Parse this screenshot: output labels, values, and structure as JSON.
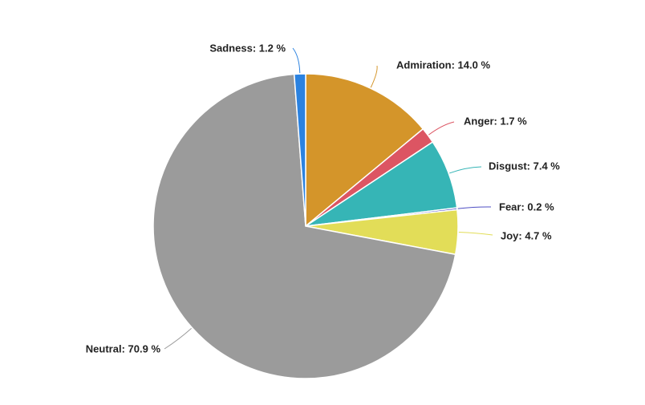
{
  "chart_data": {
    "type": "pie",
    "slices": [
      {
        "name": "Admiration",
        "value": 14.0,
        "color": "#d4952a",
        "label": "Admiration: 14.0 %"
      },
      {
        "name": "Anger",
        "value": 1.7,
        "color": "#dc5563",
        "label": "Anger: 1.7 %"
      },
      {
        "name": "Disgust",
        "value": 7.4,
        "color": "#36b5b6",
        "label": "Disgust: 7.4 %"
      },
      {
        "name": "Fear",
        "value": 0.2,
        "color": "#4f4fc4",
        "label": "Fear: 0.2 %"
      },
      {
        "name": "Joy",
        "value": 4.7,
        "color": "#e2dd58",
        "label": "Joy: 4.7 %"
      },
      {
        "name": "Neutral",
        "value": 70.9,
        "color": "#9b9b9b",
        "label": "Neutral: 70.9 %"
      },
      {
        "name": "Sadness",
        "value": 1.2,
        "color": "#2b82e0",
        "label": "Sadness: 1.2 %"
      }
    ],
    "start_angle": "12 o'clock",
    "direction": "clockwise",
    "legend": "none"
  }
}
